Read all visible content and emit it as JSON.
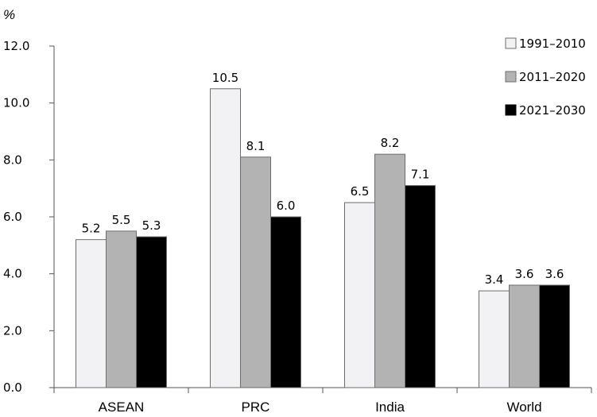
{
  "chart_data": {
    "type": "bar",
    "title": "",
    "unit_label": "%",
    "categories": [
      "ASEAN",
      "PRC",
      "India",
      "World"
    ],
    "series": [
      {
        "name": "1991–2010",
        "color": "#f2f2f4",
        "values": [
          5.2,
          10.5,
          6.5,
          3.4
        ]
      },
      {
        "name": "2011–2020",
        "color": "#b3b3b3",
        "values": [
          5.5,
          8.1,
          8.2,
          3.6
        ]
      },
      {
        "name": "2021–2030",
        "color": "#000000",
        "values": [
          5.3,
          6.0,
          7.1,
          3.6
        ]
      }
    ],
    "ylim": [
      0,
      12
    ],
    "yticks": [
      "0.0",
      "2.0",
      "4.0",
      "6.0",
      "8.0",
      "10.0",
      "12.0"
    ],
    "xlabel": "",
    "ylabel": "",
    "legend": "top-right",
    "grid": false
  }
}
